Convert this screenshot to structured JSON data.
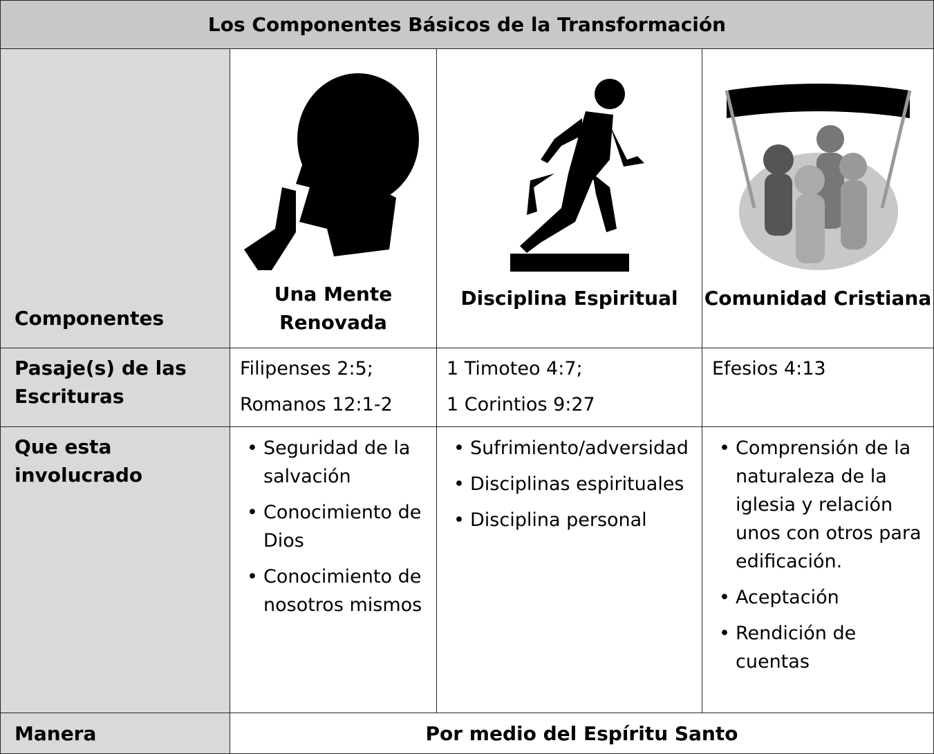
{
  "title": "Los Componentes Básicos de la Transformación",
  "table": {
    "header_label": "Componentes",
    "columns": [
      "Una Mente Renovada",
      "Disciplina Espiritual",
      "Comunidad Cristiana"
    ],
    "rows": [
      {
        "label": "Pasaje(s) de las Escrituras",
        "cells": [
          [
            "Filipenses 2:5;",
            "Romanos 12:1-2"
          ],
          [
            "1 Timoteo 4:7;",
            "1 Corintios 9:27"
          ],
          [
            "Efesios 4:13"
          ]
        ]
      },
      {
        "label": "Que esta involucrado",
        "cells": [
          [
            "Seguridad de la salvación",
            "Conocimiento de Dios",
            "Conocimiento de nosotros mismos"
          ],
          [
            "Sufrimiento/adversidad",
            "Disciplinas espirituales",
            "Disciplina personal"
          ],
          [
            "Comprensión de la naturaleza de la iglesia y relación unos con otros para edificación.",
            "Aceptación",
            "Rendición de cuentas"
          ]
        ]
      },
      {
        "label": "Manera",
        "value": "Por medio del Espíritu Santo"
      }
    ]
  }
}
